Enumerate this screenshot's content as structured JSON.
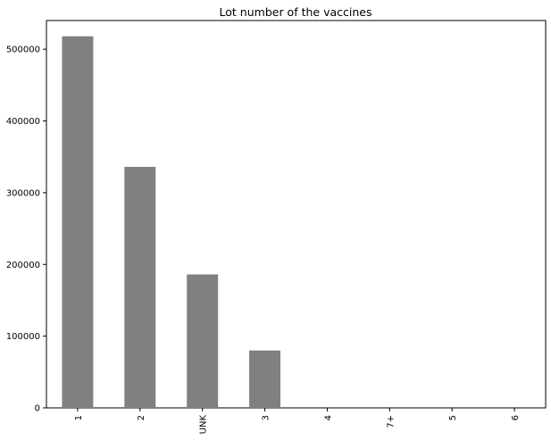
{
  "chart_data": {
    "type": "bar",
    "title": "Lot number of the vaccines",
    "xlabel": "",
    "ylabel": "",
    "categories": [
      "1",
      "2",
      "UNK",
      "3",
      "4",
      "7+",
      "5",
      "6"
    ],
    "values": [
      518000,
      336000,
      186000,
      80000,
      0,
      0,
      0,
      0
    ],
    "ylim": [
      0,
      540000
    ],
    "yticks": [
      0,
      100000,
      200000,
      300000,
      400000,
      500000
    ],
    "ytick_labels": [
      "0",
      "100000",
      "200000",
      "300000",
      "400000",
      "500000"
    ],
    "bar_color": "#808080",
    "grid": false,
    "legend": "none"
  }
}
